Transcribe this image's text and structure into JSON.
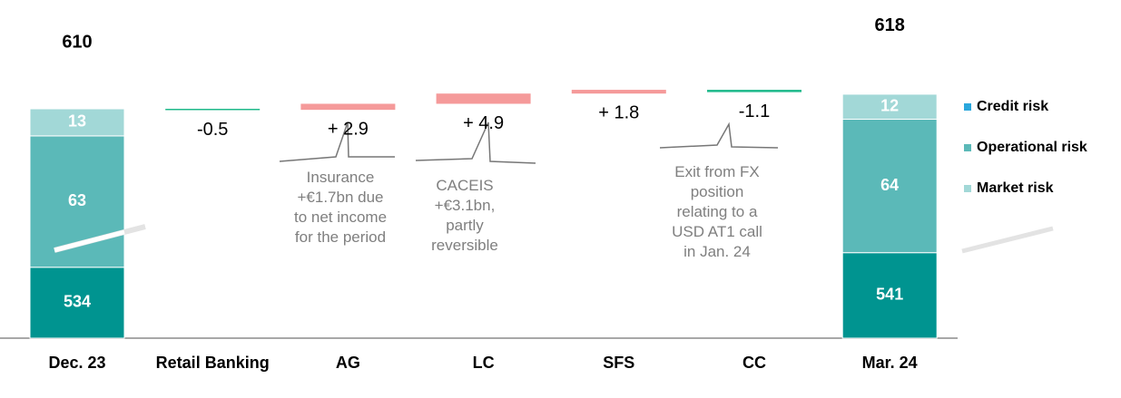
{
  "chart_data": {
    "type": "waterfall",
    "categories": [
      "Dec. 23",
      "Retail Banking",
      "AG",
      "LC",
      "SFS",
      "CC",
      "Mar. 24"
    ],
    "series": [
      {
        "name": "Credit risk",
        "color": "#009490",
        "legend_color": "#2aa7dc",
        "values": [
          534,
          null,
          null,
          null,
          null,
          null,
          541
        ]
      },
      {
        "name": "Operational risk",
        "color": "#5bb9b8",
        "legend_color": "#5bb9b8",
        "values": [
          63,
          null,
          null,
          null,
          null,
          null,
          64
        ]
      },
      {
        "name": "Market risk",
        "color": "#a2d8d7",
        "legend_color": "#a2d8d7",
        "values": [
          13,
          null,
          null,
          null,
          null,
          null,
          12
        ]
      }
    ],
    "totals": {
      "values": [
        610,
        null,
        null,
        null,
        null,
        null,
        618
      ]
    },
    "changes": {
      "values": [
        null,
        -0.5,
        2.9,
        4.9,
        1.8,
        -1.1,
        null
      ],
      "value_labels": [
        null,
        "-0.5",
        "+ 2.9",
        "+ 4.9",
        "+ 1.8",
        "-1.1",
        null
      ],
      "increase_color": "#f59a9a",
      "decrease_color": "#1fb98b"
    },
    "annotations": [
      {
        "lines": [
          "Insurance",
          "+€1.7bn due",
          "to net income",
          "for the period"
        ]
      },
      {
        "lines": [
          "CACEIS",
          "+€3.1bn,",
          "partly",
          "reversible"
        ]
      },
      {
        "lines": [
          "Exit from FX",
          "position",
          "relating to a",
          "USD AT1 call",
          "in Jan. 24"
        ]
      }
    ],
    "ylim": [
      500,
      640
    ],
    "axis_break": true,
    "legend": "right"
  }
}
